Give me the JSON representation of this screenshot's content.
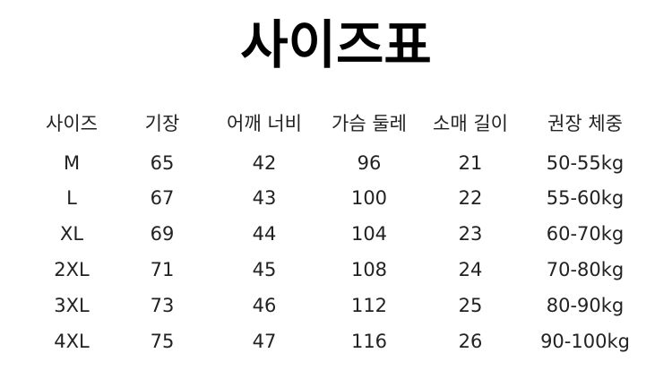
{
  "title": "사이즈표",
  "table": {
    "headers": [
      "사이즈",
      "기장",
      "어깨 너비",
      "가슴 둘레",
      "소매 길이",
      "권장 체중"
    ],
    "rows": [
      [
        "M",
        "65",
        "42",
        "96",
        "21",
        "50-55kg"
      ],
      [
        "L",
        "67",
        "43",
        "100",
        "22",
        "55-60kg"
      ],
      [
        "XL",
        "69",
        "44",
        "104",
        "23",
        "60-70kg"
      ],
      [
        "2XL",
        "71",
        "45",
        "108",
        "24",
        "70-80kg"
      ],
      [
        "3XL",
        "73",
        "46",
        "112",
        "25",
        "80-90kg"
      ],
      [
        "4XL",
        "75",
        "47",
        "116",
        "26",
        "90-100kg"
      ]
    ]
  }
}
